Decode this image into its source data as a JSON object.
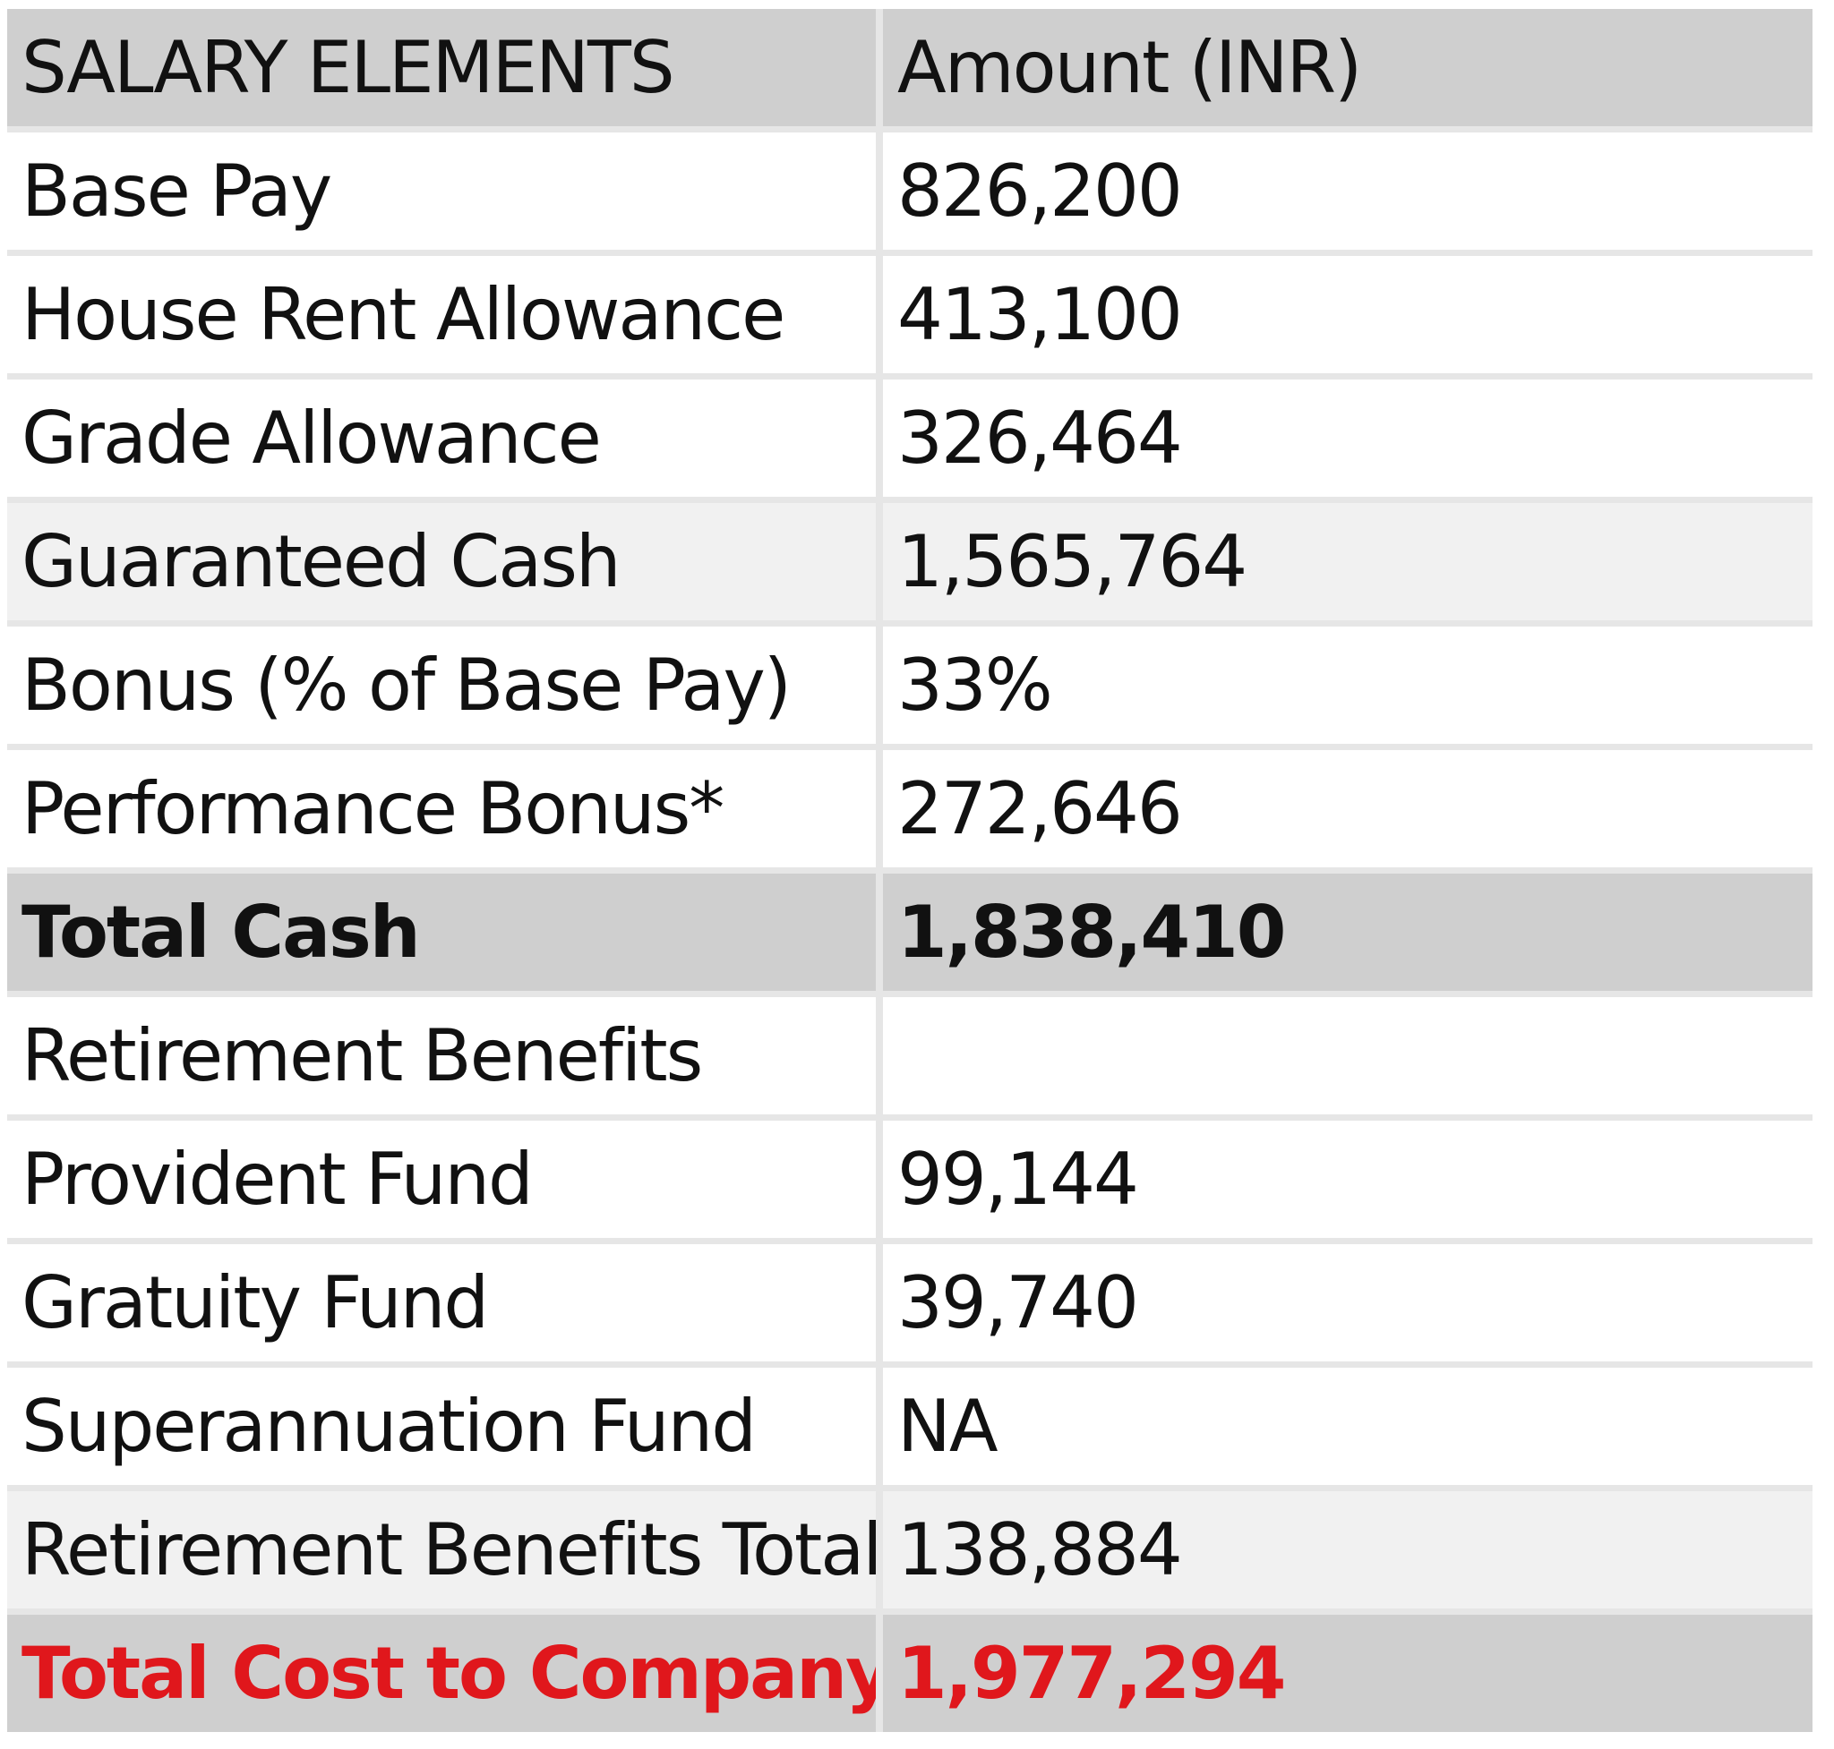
{
  "header": {
    "element_label": "SALARY ELEMENTS",
    "amount_label": "Amount (INR)"
  },
  "rows": [
    {
      "element": "Base Pay",
      "amount": "826,200",
      "style": "plain"
    },
    {
      "element": "House Rent Allowance",
      "amount": "413,100",
      "style": "plain"
    },
    {
      "element": "Grade Allowance",
      "amount": "326,464",
      "style": "plain"
    },
    {
      "element": "Guaranteed Cash",
      "amount": "1,565,764",
      "style": "light"
    },
    {
      "element": "Bonus (% of Base Pay)",
      "amount": "33%",
      "style": "plain"
    },
    {
      "element": "Performance Bonus*",
      "amount": "272,646",
      "style": "plain"
    },
    {
      "element": "Total Cash",
      "amount": "1,838,410",
      "style": "total"
    },
    {
      "element": "Retirement Benefits",
      "amount": "",
      "style": "plain"
    },
    {
      "element": "Provident Fund",
      "amount": "99,144",
      "style": "plain"
    },
    {
      "element": "Gratuity Fund",
      "amount": "39,740",
      "style": "plain"
    },
    {
      "element": "Superannuation Fund",
      "amount": "NA",
      "style": "plain"
    },
    {
      "element": "Retirement Benefits Total",
      "amount": "138,884",
      "style": "light"
    },
    {
      "element": "Total Cost to Company",
      "amount": "1,977,294",
      "style": "ctc"
    }
  ],
  "colors": {
    "header_bg": "#cfcfcf",
    "light_row_bg": "#f1f1f1",
    "grid_line": "#e6e6e6",
    "ctc_text": "#e0171c"
  }
}
